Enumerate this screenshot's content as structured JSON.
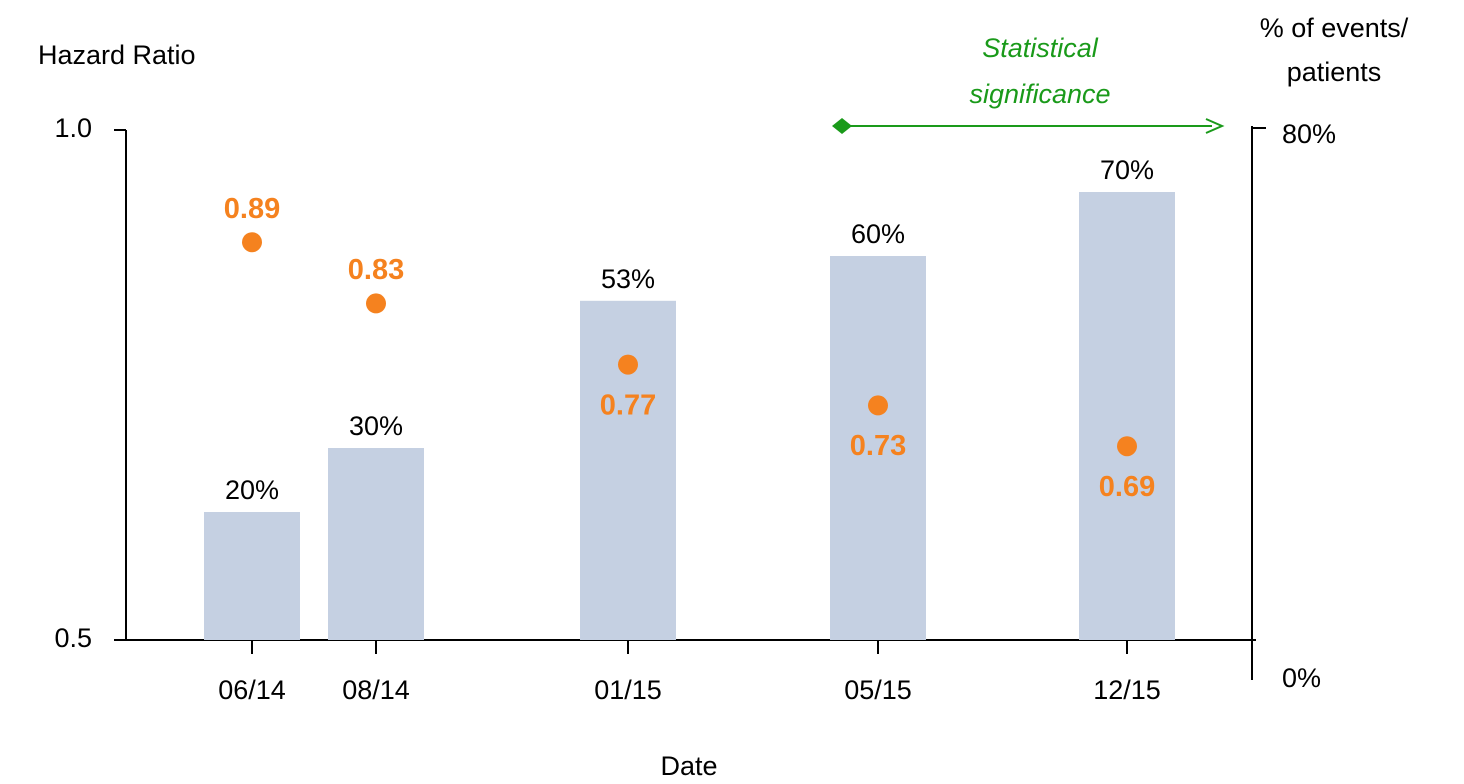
{
  "chart_data": {
    "type": "bar",
    "y_label": "Hazard Ratio",
    "y2_label": [
      "% of events/",
      "patients"
    ],
    "x_label": "Date",
    "annotation": [
      "Statistical",
      "significance"
    ],
    "annotation_color": "#1a9a1a",
    "categories": [
      "06/14",
      "08/14",
      "01/15",
      "05/15",
      "12/15"
    ],
    "ylim": [
      0.5,
      1.0
    ],
    "yticks": [
      0.5,
      {
        "value": 1.0,
        "label": "1.0"
      }
    ],
    "y2lim": [
      0,
      80
    ],
    "y2ticks": [
      {
        "value": 0,
        "label": "0%"
      },
      {
        "value": 80,
        "label": "80%"
      }
    ],
    "series": [
      {
        "type": "bar",
        "axis": "y2",
        "color": "#c5d0e2",
        "values": [
          20,
          30,
          53,
          60,
          70
        ],
        "value_labels": [
          "20%",
          "30%",
          "53%",
          "60%",
          "70%"
        ]
      },
      {
        "type": "scatter",
        "color": "#f5821f",
        "values": [
          0.89,
          0.83,
          0.77,
          0.73,
          0.69
        ]
      }
    ]
  }
}
